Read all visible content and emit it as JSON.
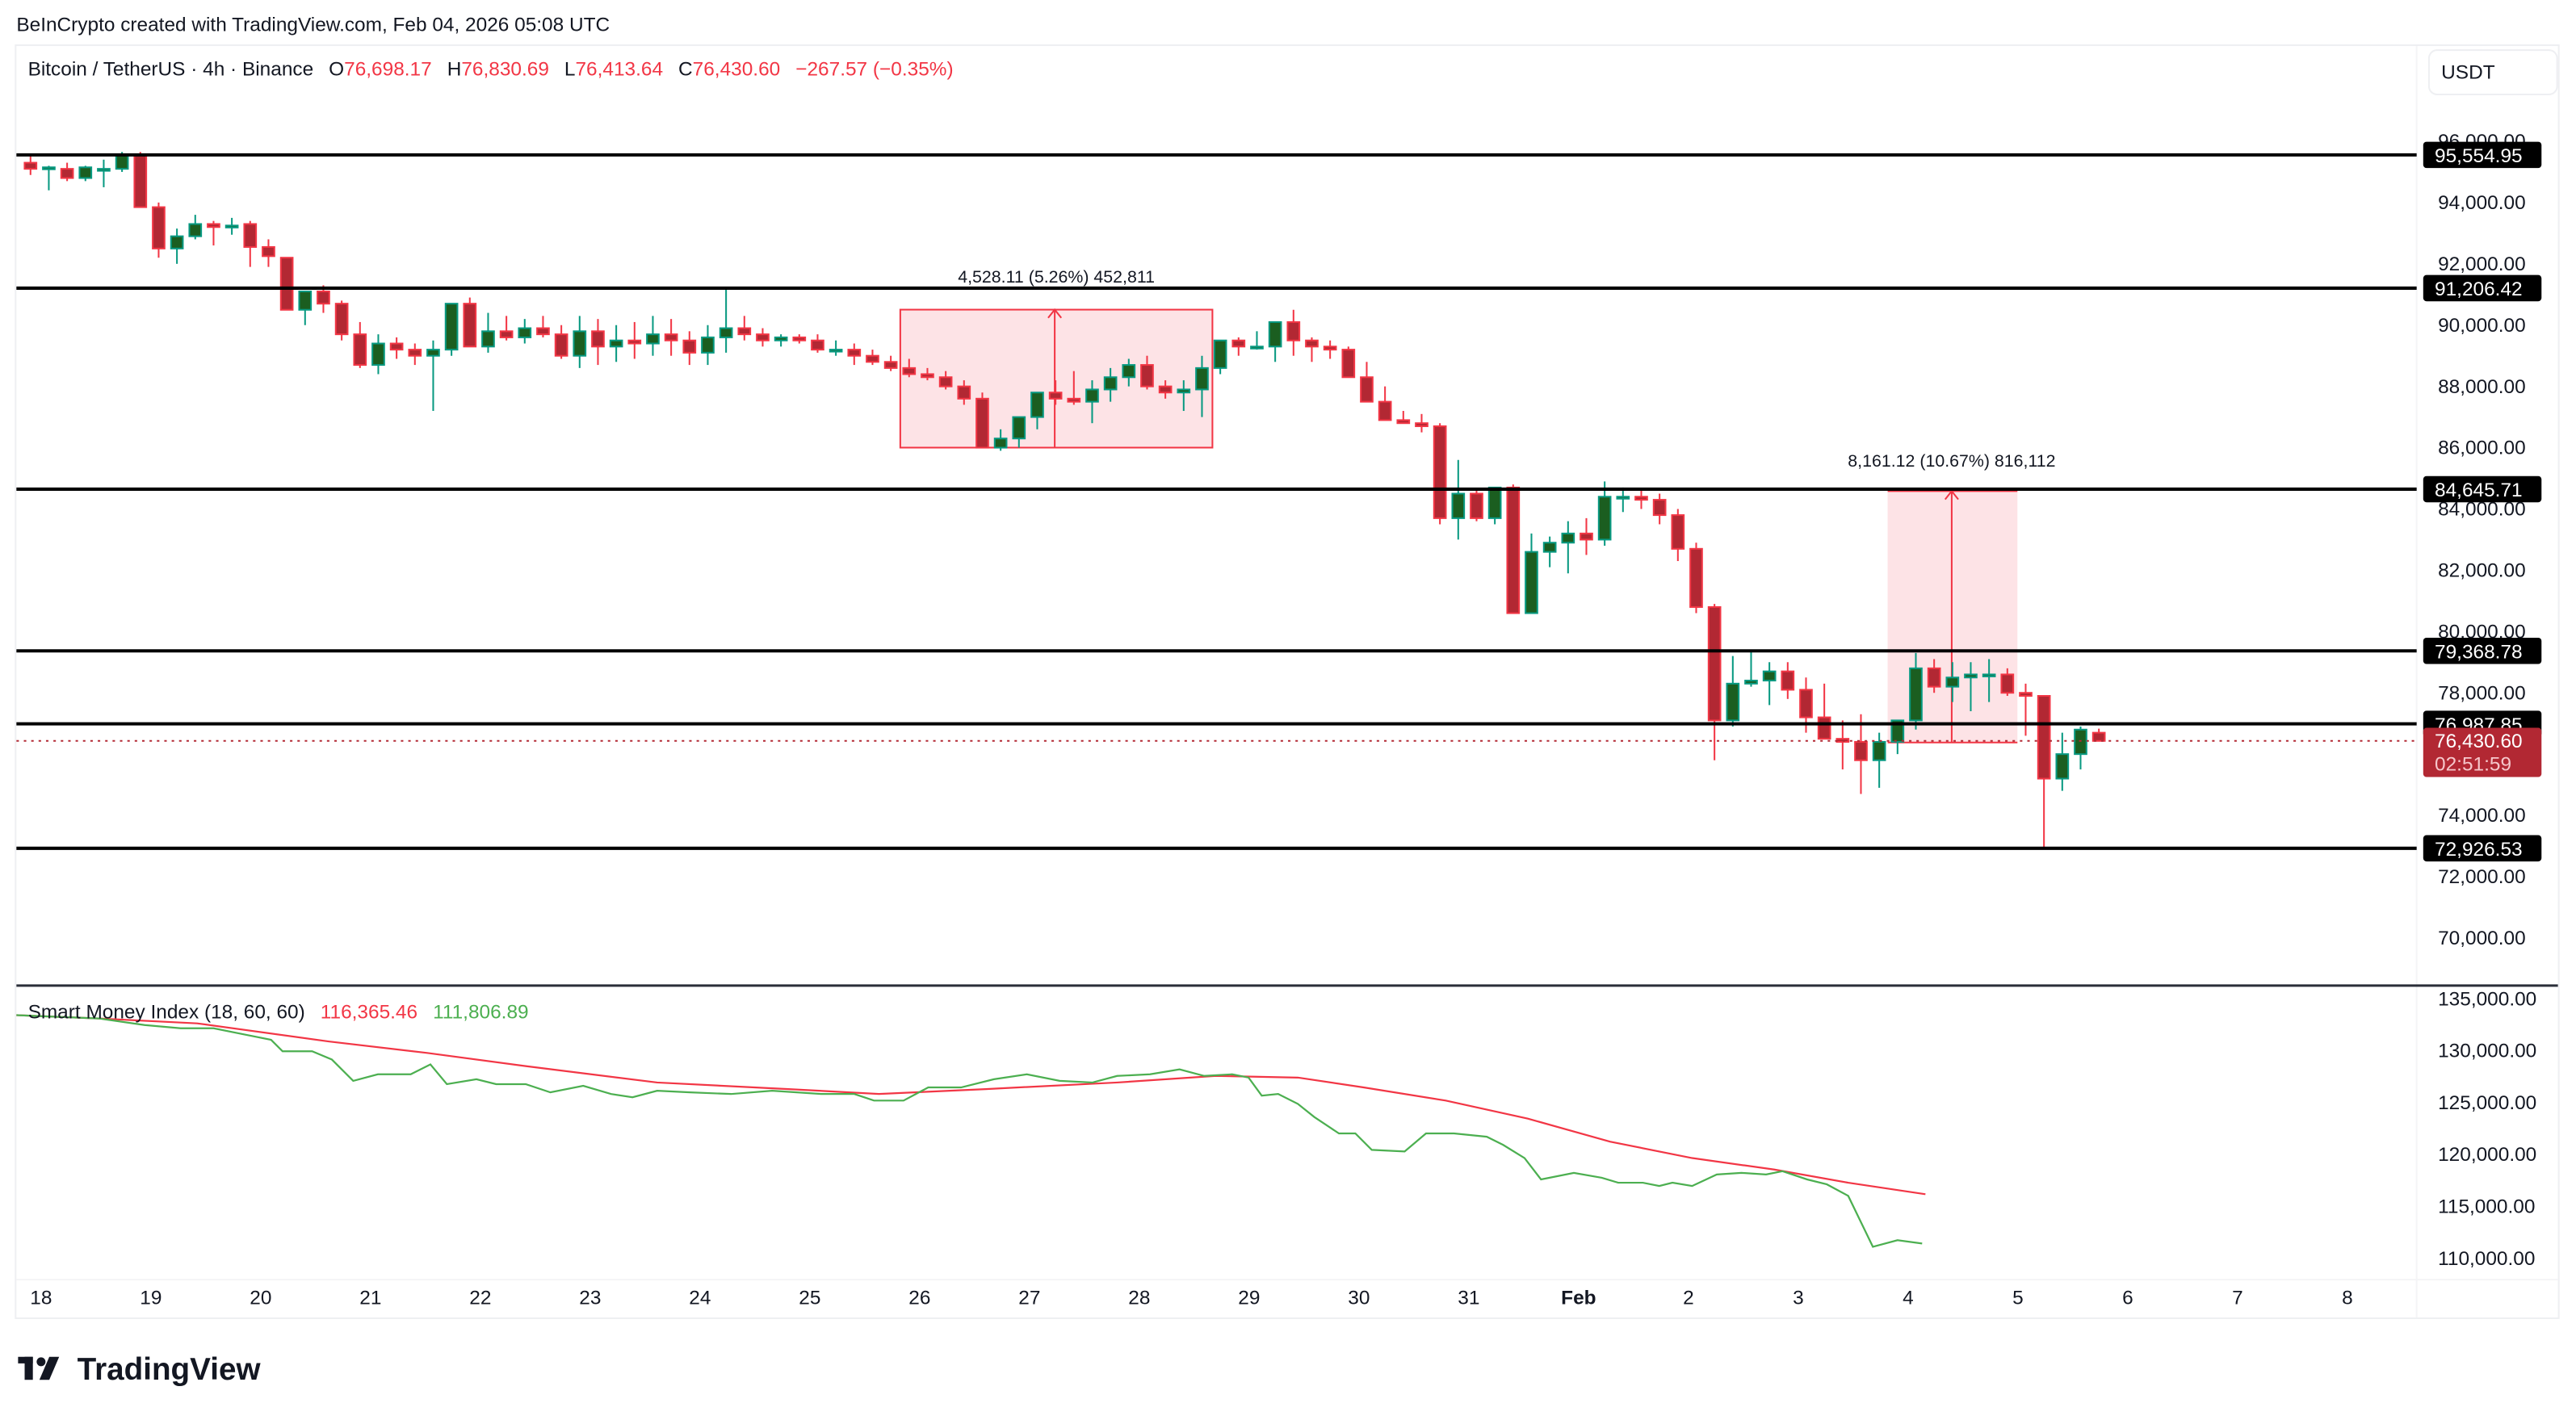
{
  "header": {
    "attribution": "BeInCrypto created with TradingView.com, Feb 04, 2026 05:08 UTC"
  },
  "legend": {
    "symbol": "Bitcoin / TetherUS · 4h · Binance",
    "o_label": "O",
    "o_value": "76,698.17",
    "h_label": "H",
    "h_value": "76,830.69",
    "l_label": "L",
    "l_value": "76,413.64",
    "c_label": "C",
    "c_value": "76,430.60",
    "change": "−267.57 (−0.35%)"
  },
  "currency_button": "USDT",
  "colors": {
    "bull_fill": "#1b5e20",
    "bull_border": "#089981",
    "bear_fill": "#b22833",
    "bear_border": "#f23645",
    "level_line": "#000000",
    "measure_fill": "#fde0e3",
    "measure_line": "#f23645",
    "smi_line": "#4caf50",
    "smi_signal": "#f23645",
    "last_price_bg": "#b22833"
  },
  "price_axis": {
    "ticks": [
      "96,000.00",
      "94,000.00",
      "92,000.00",
      "90,000.00",
      "88,000.00",
      "86,000.00",
      "84,000.00",
      "82,000.00",
      "80,000.00",
      "78,000.00",
      "74,000.00",
      "72,000.00",
      "70,000.00"
    ],
    "tick_values": [
      96000,
      94000,
      92000,
      90000,
      88000,
      86000,
      84000,
      82000,
      80000,
      78000,
      74000,
      72000,
      70000
    ],
    "levels": [
      {
        "label": "95,554.95",
        "value": 95554.95
      },
      {
        "label": "91,206.42",
        "value": 91206.42
      },
      {
        "label": "84,645.71",
        "value": 84645.71
      },
      {
        "label": "79,368.78",
        "value": 79368.78
      },
      {
        "label": "76,987.85",
        "value": 76987.85
      },
      {
        "label": "72,926.53",
        "value": 72926.53
      }
    ],
    "last_price": "76,430.60",
    "countdown": "02:51:59"
  },
  "measurements": [
    {
      "text": "4,528.11 (5.26%) 452,811"
    },
    {
      "text": "8,161.12 (10.67%) 816,112"
    }
  ],
  "indicator": {
    "name": "Smart Money Index (18, 60, 60)",
    "value1": "116,365.46",
    "value2": "111,806.89",
    "ticks": [
      "135,000.00",
      "130,000.00",
      "125,000.00",
      "120,000.00",
      "115,000.00",
      "110,000.00"
    ]
  },
  "time_axis": {
    "labels": [
      "18",
      "19",
      "20",
      "21",
      "22",
      "23",
      "24",
      "25",
      "26",
      "27",
      "28",
      "29",
      "30",
      "31",
      "Feb",
      "2",
      "3",
      "4",
      "5",
      "6",
      "7",
      "8"
    ]
  },
  "footer": {
    "logo_text": "TradingView"
  },
  "chart_data": {
    "type": "candlestick",
    "title": "Bitcoin / TetherUS · 4h · Binance",
    "xlabel": "",
    "ylabel": "USDT",
    "ylim": [
      69000,
      97000
    ],
    "x_categories": [
      "18",
      "19",
      "20",
      "21",
      "22",
      "23",
      "24",
      "25",
      "26",
      "27",
      "28",
      "29",
      "30",
      "31",
      "Feb",
      "2",
      "3",
      "4",
      "5",
      "6",
      "7",
      "8"
    ],
    "horizontal_levels": [
      95554.95,
      91206.42,
      84645.71,
      79368.78,
      76987.85,
      72926.53
    ],
    "last": {
      "open": 76698.17,
      "high": 76830.69,
      "low": 76413.64,
      "close": 76430.6,
      "change": -267.57,
      "change_pct": -0.35
    },
    "candles": [
      [
        95300,
        95600,
        94900,
        95100
      ],
      [
        95100,
        95200,
        94400,
        95150
      ],
      [
        95100,
        95300,
        94700,
        94800
      ],
      [
        94800,
        95200,
        94700,
        95150
      ],
      [
        95100,
        95400,
        94500,
        95100
      ],
      [
        95100,
        95650,
        95000,
        95550
      ],
      [
        95550,
        95650,
        94000,
        93850
      ],
      [
        93850,
        94000,
        92200,
        92500
      ],
      [
        92500,
        93150,
        92000,
        92900
      ],
      [
        92900,
        93600,
        92800,
        93300
      ],
      [
        93300,
        93400,
        92600,
        93200
      ],
      [
        93200,
        93500,
        92950,
        93250
      ],
      [
        93300,
        93400,
        91900,
        92550
      ],
      [
        92550,
        92800,
        91900,
        92250
      ],
      [
        92200,
        92200,
        90500,
        90500
      ],
      [
        90500,
        91000,
        90000,
        91100
      ],
      [
        91100,
        91300,
        90400,
        90700
      ],
      [
        90700,
        90800,
        89500,
        89700
      ],
      [
        89700,
        90100,
        88600,
        88700
      ],
      [
        88700,
        89700,
        88400,
        89400
      ],
      [
        89400,
        89600,
        88900,
        89200
      ],
      [
        89200,
        89400,
        88700,
        89000
      ],
      [
        89000,
        89500,
        87200,
        89200
      ],
      [
        89200,
        90700,
        89000,
        90700
      ],
      [
        90700,
        90900,
        89900,
        89300
      ],
      [
        89300,
        90400,
        89100,
        89800
      ],
      [
        89800,
        90300,
        89500,
        89600
      ],
      [
        89600,
        90200,
        89400,
        89900
      ],
      [
        89900,
        90300,
        89600,
        89700
      ],
      [
        89700,
        90000,
        88900,
        89000
      ],
      [
        89000,
        90300,
        88600,
        89800
      ],
      [
        89800,
        90200,
        88700,
        89300
      ],
      [
        89300,
        90000,
        88800,
        89500
      ],
      [
        89500,
        90100,
        88900,
        89400
      ],
      [
        89400,
        90300,
        89000,
        89700
      ],
      [
        89700,
        90200,
        89000,
        89500
      ],
      [
        89500,
        89800,
        88700,
        89100
      ],
      [
        89100,
        90000,
        88700,
        89600
      ],
      [
        89600,
        91200,
        89100,
        89900
      ],
      [
        89900,
        90300,
        89500,
        89700
      ],
      [
        89700,
        89900,
        89300,
        89500
      ],
      [
        89500,
        89700,
        89300,
        89600
      ],
      [
        89600,
        89700,
        89400,
        89500
      ],
      [
        89500,
        89700,
        89100,
        89200
      ],
      [
        89200,
        89500,
        89000,
        89200
      ],
      [
        89200,
        89400,
        88700,
        89000
      ],
      [
        89000,
        89200,
        88700,
        88800
      ],
      [
        88800,
        89000,
        88500,
        88600
      ],
      [
        88600,
        88900,
        88300,
        88400
      ],
      [
        88400,
        88600,
        88200,
        88300
      ],
      [
        88300,
        88500,
        87900,
        88000
      ],
      [
        88000,
        88200,
        87400,
        87600
      ],
      [
        87600,
        87800,
        86100,
        86000
      ],
      [
        86000,
        86600,
        85900,
        86300
      ],
      [
        86300,
        86900,
        86000,
        87000
      ],
      [
        87000,
        87800,
        86600,
        87800
      ],
      [
        87800,
        88200,
        87400,
        87600
      ],
      [
        87600,
        88500,
        87400,
        87500
      ],
      [
        87500,
        88200,
        86800,
        87900
      ],
      [
        87900,
        88600,
        87500,
        88300
      ],
      [
        88300,
        88900,
        88000,
        88700
      ],
      [
        88700,
        89000,
        87900,
        88000
      ],
      [
        88000,
        88200,
        87600,
        87800
      ],
      [
        87800,
        88200,
        87200,
        87900
      ],
      [
        87900,
        89000,
        87000,
        88600
      ],
      [
        88600,
        89500,
        88400,
        89500
      ],
      [
        89500,
        89600,
        89000,
        89300
      ],
      [
        89300,
        89800,
        89200,
        89300
      ],
      [
        89300,
        90100,
        88800,
        90100
      ],
      [
        90100,
        90500,
        89000,
        89500
      ],
      [
        89500,
        89600,
        88800,
        89300
      ],
      [
        89300,
        89500,
        88900,
        89200
      ],
      [
        89200,
        89300,
        88700,
        88300
      ],
      [
        88300,
        88800,
        87600,
        87500
      ],
      [
        87500,
        88000,
        87000,
        86900
      ],
      [
        86900,
        87200,
        86800,
        86800
      ],
      [
        86800,
        87100,
        86500,
        86700
      ],
      [
        86700,
        86800,
        83500,
        83700
      ],
      [
        83700,
        85600,
        83000,
        84500
      ],
      [
        84500,
        84600,
        83600,
        83700
      ],
      [
        83700,
        84700,
        83500,
        84700
      ],
      [
        84700,
        84800,
        81900,
        80600
      ],
      [
        80600,
        83200,
        82000,
        82600
      ],
      [
        82600,
        83100,
        82100,
        82900
      ],
      [
        82900,
        83600,
        81900,
        83200
      ],
      [
        83200,
        83700,
        82500,
        83000
      ],
      [
        83000,
        84900,
        82800,
        84400
      ],
      [
        84400,
        84700,
        83900,
        84400
      ],
      [
        84400,
        84600,
        84000,
        84300
      ],
      [
        84300,
        84500,
        83500,
        83800
      ],
      [
        83800,
        84000,
        82300,
        82700
      ],
      [
        82700,
        82900,
        80600,
        80800
      ],
      [
        80800,
        80900,
        75800,
        77100
      ],
      [
        77100,
        79200,
        76900,
        78300
      ],
      [
        78300,
        79400,
        78200,
        78400
      ],
      [
        78400,
        79000,
        77600,
        78700
      ],
      [
        78700,
        79000,
        77800,
        78100
      ],
      [
        78100,
        78500,
        76700,
        77200
      ],
      [
        77200,
        78300,
        76800,
        76500
      ],
      [
        76500,
        77100,
        75500,
        76400
      ],
      [
        76400,
        77300,
        74700,
        75800
      ],
      [
        75800,
        76700,
        74900,
        76400
      ],
      [
        76400,
        76900,
        76000,
        77100
      ],
      [
        77100,
        79300,
        76800,
        78800
      ],
      [
        78800,
        79100,
        78000,
        78200
      ],
      [
        78200,
        79000,
        77700,
        78500
      ],
      [
        78500,
        79000,
        77400,
        78600
      ],
      [
        78600,
        79100,
        77700,
        78600
      ],
      [
        78600,
        78800,
        77900,
        78000
      ],
      [
        78000,
        78300,
        76600,
        77900
      ],
      [
        77900,
        77900,
        72900,
        75200
      ],
      [
        75200,
        76700,
        74800,
        76000
      ],
      [
        76000,
        76900,
        75500,
        76800
      ],
      [
        76698.17,
        76830.69,
        76413.64,
        76430.6
      ]
    ]
  }
}
